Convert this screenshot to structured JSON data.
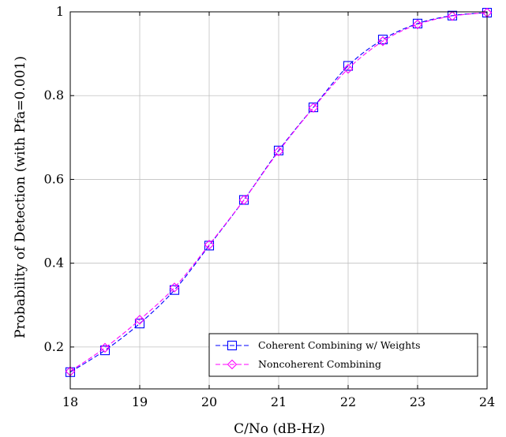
{
  "chart_data": {
    "type": "line",
    "title": "",
    "xlabel": "C/No (dB-Hz)",
    "ylabel": "Probability of Detection (with Pfa=0.001)",
    "xlim": [
      18,
      24
    ],
    "ylim": [
      0.1,
      1.0
    ],
    "x_ticks": [
      18,
      19,
      20,
      21,
      22,
      23,
      24
    ],
    "x_tick_labels": [
      "18",
      "19",
      "20",
      "21",
      "22",
      "23",
      "24"
    ],
    "y_ticks": [
      0.2,
      0.4,
      0.6,
      0.8,
      1.0
    ],
    "y_tick_labels": [
      "0.2",
      "0.4",
      "0.6",
      "0.8",
      "1"
    ],
    "grid": true,
    "legend_position": "bottom-right",
    "x": [
      18,
      18.5,
      19,
      19.5,
      20,
      20.5,
      21,
      21.5,
      22,
      22.5,
      23,
      23.5,
      24
    ],
    "series": [
      {
        "name": "Coherent Combining w/ Weights",
        "color": "#0000ff",
        "marker": "square",
        "line_style": "dashed",
        "values": [
          0.14,
          0.192,
          0.256,
          0.336,
          0.442,
          0.551,
          0.669,
          0.772,
          0.871,
          0.934,
          0.972,
          0.991,
          0.998
        ]
      },
      {
        "name": "Noncoherent Combining",
        "color": "#ff00ff",
        "marker": "diamond",
        "line_style": "dashed",
        "values": [
          0.142,
          0.198,
          0.265,
          0.342,
          0.444,
          0.551,
          0.667,
          0.771,
          0.864,
          0.93,
          0.97,
          0.99,
          0.998
        ]
      }
    ]
  }
}
